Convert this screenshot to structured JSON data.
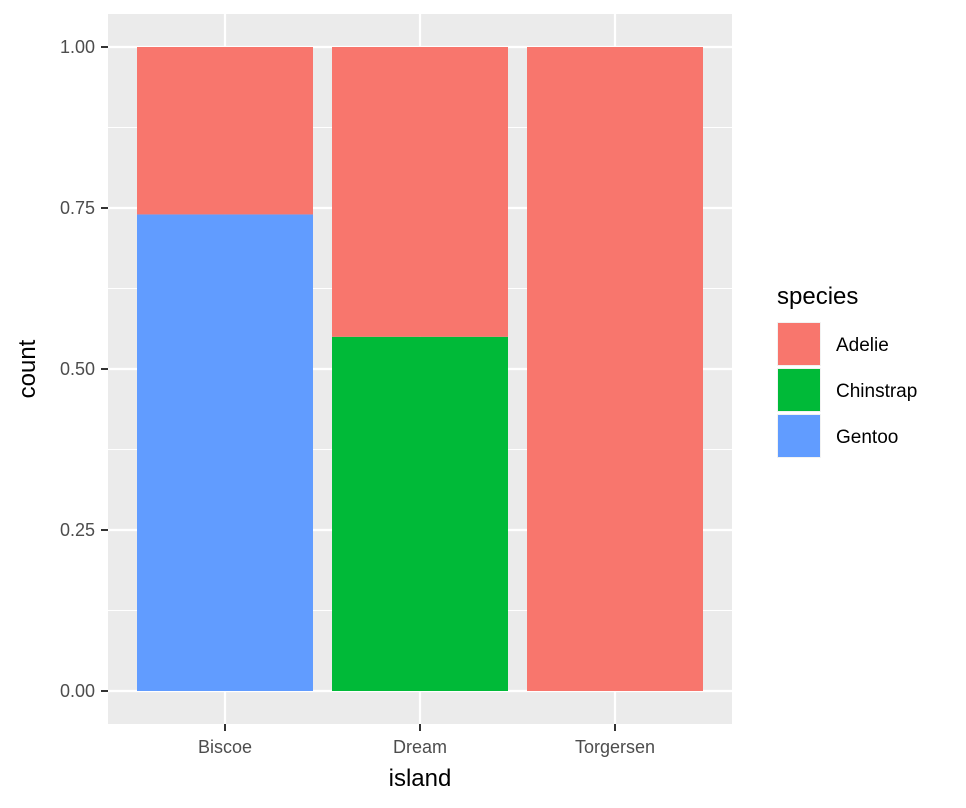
{
  "chart_data": {
    "type": "bar",
    "stacked": true,
    "position": "fill",
    "categories": [
      "Biscoe",
      "Dream",
      "Torgersen"
    ],
    "series": [
      {
        "name": "Adelie",
        "color": "#F8766D",
        "values": [
          0.26,
          0.45,
          1.0
        ]
      },
      {
        "name": "Chinstrap",
        "color": "#00BA38",
        "values": [
          0.0,
          0.55,
          0.0
        ]
      },
      {
        "name": "Gentoo",
        "color": "#619CFF",
        "values": [
          0.74,
          0.0,
          0.0
        ]
      }
    ],
    "stack_order_bottom_to_top": [
      "Gentoo",
      "Chinstrap",
      "Adelie"
    ],
    "xlabel": "island",
    "ylabel": "count",
    "ylim": [
      0,
      1
    ],
    "yticks": [
      0.0,
      0.25,
      0.5,
      0.75,
      1.0
    ],
    "ytick_labels": [
      "0.00",
      "0.25",
      "0.50",
      "0.75",
      "1.00"
    ],
    "legend": {
      "title": "species",
      "placement": "right"
    },
    "grid": true,
    "panel_background": "#EBEBEB"
  }
}
